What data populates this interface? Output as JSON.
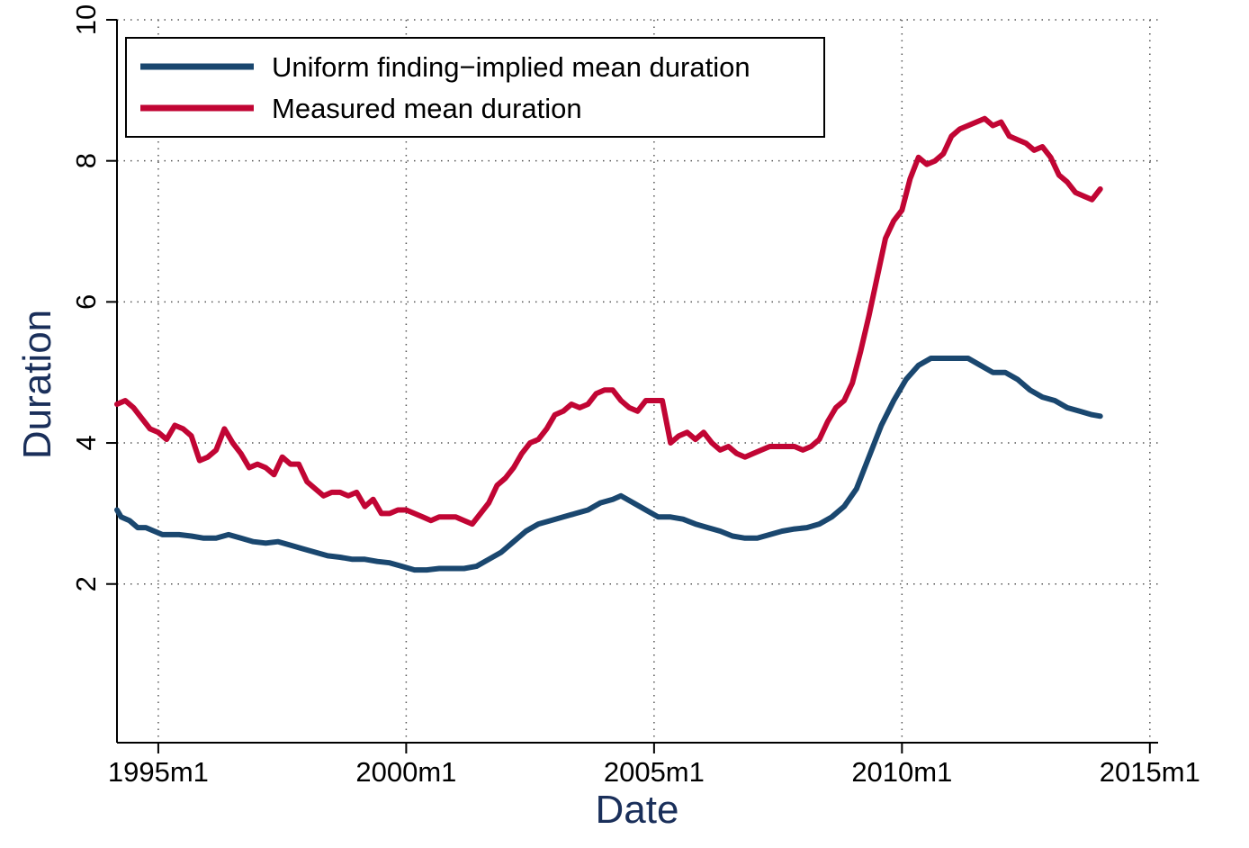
{
  "chart_data": {
    "type": "line",
    "xlabel": "Date",
    "ylabel": "Duration",
    "xlim": [
      "1994m3",
      "2015m3"
    ],
    "ylim": [
      -0.25,
      10
    ],
    "x_ticks": [
      {
        "date": "1995m1",
        "label": "1995m1"
      },
      {
        "date": "2000m1",
        "label": "2000m1"
      },
      {
        "date": "2005m1",
        "label": "2005m1"
      },
      {
        "date": "2010m1",
        "label": "2010m1"
      },
      {
        "date": "2015m1",
        "label": "2015m1"
      }
    ],
    "y_ticks": [
      {
        "value": 2,
        "label": "2"
      },
      {
        "value": 4,
        "label": "4"
      },
      {
        "value": 6,
        "label": "6"
      },
      {
        "value": 8,
        "label": "8"
      },
      {
        "value": 10,
        "label": "10"
      }
    ],
    "grid": true,
    "legend_position": "top-left",
    "series": [
      {
        "name": "Uniform finding−implied mean duration",
        "color": "#1a476f",
        "points": [
          [
            "1994m3",
            3.05
          ],
          [
            "1994m4",
            2.95
          ],
          [
            "1994m6",
            2.9
          ],
          [
            "1994m8",
            2.8
          ],
          [
            "1994m10",
            2.8
          ],
          [
            "1994m12",
            2.75
          ],
          [
            "1995m2",
            2.7
          ],
          [
            "1995m4",
            2.7
          ],
          [
            "1995m6",
            2.7
          ],
          [
            "1995m9",
            2.68
          ],
          [
            "1995m12",
            2.65
          ],
          [
            "1996m3",
            2.65
          ],
          [
            "1996m6",
            2.7
          ],
          [
            "1996m9",
            2.65
          ],
          [
            "1996m12",
            2.6
          ],
          [
            "1997m3",
            2.58
          ],
          [
            "1997m6",
            2.6
          ],
          [
            "1997m9",
            2.55
          ],
          [
            "1997m12",
            2.5
          ],
          [
            "1998m3",
            2.45
          ],
          [
            "1998m6",
            2.4
          ],
          [
            "1998m9",
            2.38
          ],
          [
            "1998m12",
            2.35
          ],
          [
            "1999m3",
            2.35
          ],
          [
            "1999m6",
            2.32
          ],
          [
            "1999m9",
            2.3
          ],
          [
            "1999m12",
            2.25
          ],
          [
            "2000m3",
            2.2
          ],
          [
            "2000m6",
            2.2
          ],
          [
            "2000m9",
            2.22
          ],
          [
            "2000m12",
            2.22
          ],
          [
            "2001m3",
            2.22
          ],
          [
            "2001m6",
            2.25
          ],
          [
            "2001m9",
            2.35
          ],
          [
            "2001m12",
            2.45
          ],
          [
            "2002m3",
            2.6
          ],
          [
            "2002m6",
            2.75
          ],
          [
            "2002m9",
            2.85
          ],
          [
            "2002m12",
            2.9
          ],
          [
            "2003m3",
            2.95
          ],
          [
            "2003m6",
            3.0
          ],
          [
            "2003m9",
            3.05
          ],
          [
            "2003m12",
            3.15
          ],
          [
            "2004m3",
            3.2
          ],
          [
            "2004m5",
            3.25
          ],
          [
            "2004m8",
            3.15
          ],
          [
            "2004m11",
            3.05
          ],
          [
            "2005m2",
            2.95
          ],
          [
            "2005m5",
            2.95
          ],
          [
            "2005m8",
            2.92
          ],
          [
            "2005m11",
            2.85
          ],
          [
            "2006m2",
            2.8
          ],
          [
            "2006m5",
            2.75
          ],
          [
            "2006m8",
            2.68
          ],
          [
            "2006m11",
            2.65
          ],
          [
            "2007m2",
            2.65
          ],
          [
            "2007m5",
            2.7
          ],
          [
            "2007m8",
            2.75
          ],
          [
            "2007m11",
            2.78
          ],
          [
            "2008m2",
            2.8
          ],
          [
            "2008m5",
            2.85
          ],
          [
            "2008m8",
            2.95
          ],
          [
            "2008m11",
            3.1
          ],
          [
            "2009m2",
            3.35
          ],
          [
            "2009m5",
            3.8
          ],
          [
            "2009m8",
            4.25
          ],
          [
            "2009m11",
            4.6
          ],
          [
            "2010m2",
            4.9
          ],
          [
            "2010m5",
            5.1
          ],
          [
            "2010m8",
            5.2
          ],
          [
            "2010m11",
            5.2
          ],
          [
            "2011m2",
            5.2
          ],
          [
            "2011m5",
            5.2
          ],
          [
            "2011m8",
            5.1
          ],
          [
            "2011m11",
            5.0
          ],
          [
            "2012m2",
            5.0
          ],
          [
            "2012m5",
            4.9
          ],
          [
            "2012m8",
            4.75
          ],
          [
            "2012m11",
            4.65
          ],
          [
            "2013m2",
            4.6
          ],
          [
            "2013m5",
            4.5
          ],
          [
            "2013m8",
            4.45
          ],
          [
            "2013m11",
            4.4
          ],
          [
            "2014m1",
            4.38
          ]
        ]
      },
      {
        "name": "Measured mean duration",
        "color": "#c10534",
        "points": [
          [
            "1994m3",
            4.55
          ],
          [
            "1994m5",
            4.6
          ],
          [
            "1994m7",
            4.5
          ],
          [
            "1994m9",
            4.35
          ],
          [
            "1994m11",
            4.2
          ],
          [
            "1995m1",
            4.15
          ],
          [
            "1995m3",
            4.05
          ],
          [
            "1995m5",
            4.25
          ],
          [
            "1995m7",
            4.2
          ],
          [
            "1995m9",
            4.1
          ],
          [
            "1995m11",
            3.75
          ],
          [
            "1996m1",
            3.8
          ],
          [
            "1996m3",
            3.9
          ],
          [
            "1996m5",
            4.2
          ],
          [
            "1996m7",
            4.0
          ],
          [
            "1996m9",
            3.85
          ],
          [
            "1996m11",
            3.65
          ],
          [
            "1997m1",
            3.7
          ],
          [
            "1997m3",
            3.65
          ],
          [
            "1997m5",
            3.55
          ],
          [
            "1997m7",
            3.8
          ],
          [
            "1997m9",
            3.7
          ],
          [
            "1997m11",
            3.7
          ],
          [
            "1998m1",
            3.45
          ],
          [
            "1998m3",
            3.35
          ],
          [
            "1998m5",
            3.25
          ],
          [
            "1998m7",
            3.3
          ],
          [
            "1998m9",
            3.3
          ],
          [
            "1998m11",
            3.25
          ],
          [
            "1999m1",
            3.3
          ],
          [
            "1999m3",
            3.1
          ],
          [
            "1999m5",
            3.2
          ],
          [
            "1999m7",
            3.0
          ],
          [
            "1999m9",
            3.0
          ],
          [
            "1999m11",
            3.05
          ],
          [
            "2000m1",
            3.05
          ],
          [
            "2000m3",
            3.0
          ],
          [
            "2000m5",
            2.95
          ],
          [
            "2000m7",
            2.9
          ],
          [
            "2000m9",
            2.95
          ],
          [
            "2000m11",
            2.95
          ],
          [
            "2001m1",
            2.95
          ],
          [
            "2001m3",
            2.9
          ],
          [
            "2001m5",
            2.85
          ],
          [
            "2001m7",
            3.0
          ],
          [
            "2001m9",
            3.15
          ],
          [
            "2001m11",
            3.4
          ],
          [
            "2002m1",
            3.5
          ],
          [
            "2002m3",
            3.65
          ],
          [
            "2002m5",
            3.85
          ],
          [
            "2002m7",
            4.0
          ],
          [
            "2002m9",
            4.05
          ],
          [
            "2002m11",
            4.2
          ],
          [
            "2003m1",
            4.4
          ],
          [
            "2003m3",
            4.45
          ],
          [
            "2003m5",
            4.55
          ],
          [
            "2003m7",
            4.5
          ],
          [
            "2003m9",
            4.55
          ],
          [
            "2003m11",
            4.7
          ],
          [
            "2004m1",
            4.75
          ],
          [
            "2004m3",
            4.75
          ],
          [
            "2004m5",
            4.6
          ],
          [
            "2004m7",
            4.5
          ],
          [
            "2004m9",
            4.45
          ],
          [
            "2004m11",
            4.6
          ],
          [
            "2005m1",
            4.6
          ],
          [
            "2005m3",
            4.6
          ],
          [
            "2005m5",
            4.0
          ],
          [
            "2005m7",
            4.1
          ],
          [
            "2005m9",
            4.15
          ],
          [
            "2005m11",
            4.05
          ],
          [
            "2006m1",
            4.15
          ],
          [
            "2006m3",
            4.0
          ],
          [
            "2006m5",
            3.9
          ],
          [
            "2006m7",
            3.95
          ],
          [
            "2006m9",
            3.85
          ],
          [
            "2006m11",
            3.8
          ],
          [
            "2007m1",
            3.85
          ],
          [
            "2007m3",
            3.9
          ],
          [
            "2007m5",
            3.95
          ],
          [
            "2007m7",
            3.95
          ],
          [
            "2007m9",
            3.95
          ],
          [
            "2007m11",
            3.95
          ],
          [
            "2008m1",
            3.9
          ],
          [
            "2008m3",
            3.95
          ],
          [
            "2008m5",
            4.05
          ],
          [
            "2008m7",
            4.3
          ],
          [
            "2008m9",
            4.5
          ],
          [
            "2008m11",
            4.6
          ],
          [
            "2009m1",
            4.85
          ],
          [
            "2009m3",
            5.3
          ],
          [
            "2009m5",
            5.8
          ],
          [
            "2009m7",
            6.35
          ],
          [
            "2009m9",
            6.9
          ],
          [
            "2009m11",
            7.15
          ],
          [
            "2010m1",
            7.3
          ],
          [
            "2010m3",
            7.75
          ],
          [
            "2010m5",
            8.05
          ],
          [
            "2010m7",
            7.95
          ],
          [
            "2010m9",
            8.0
          ],
          [
            "2010m11",
            8.1
          ],
          [
            "2011m1",
            8.35
          ],
          [
            "2011m3",
            8.45
          ],
          [
            "2011m5",
            8.5
          ],
          [
            "2011m7",
            8.55
          ],
          [
            "2011m9",
            8.6
          ],
          [
            "2011m11",
            8.5
          ],
          [
            "2012m1",
            8.55
          ],
          [
            "2012m3",
            8.35
          ],
          [
            "2012m5",
            8.3
          ],
          [
            "2012m7",
            8.25
          ],
          [
            "2012m9",
            8.15
          ],
          [
            "2012m11",
            8.2
          ],
          [
            "2013m1",
            8.05
          ],
          [
            "2013m3",
            7.8
          ],
          [
            "2013m5",
            7.7
          ],
          [
            "2013m7",
            7.55
          ],
          [
            "2013m9",
            7.5
          ],
          [
            "2013m11",
            7.45
          ],
          [
            "2014m1",
            7.6
          ]
        ]
      }
    ]
  }
}
